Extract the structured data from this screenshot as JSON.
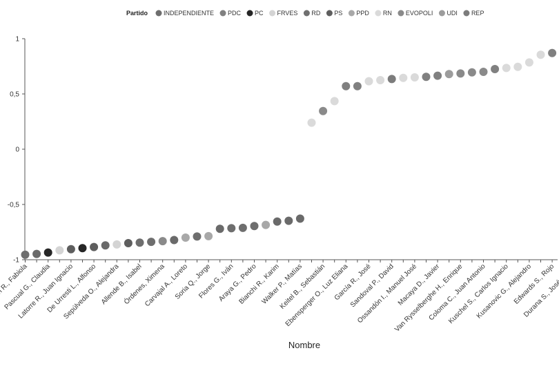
{
  "chart_data": {
    "type": "scatter",
    "title": "",
    "xlabel": "Nombre",
    "ylabel": "",
    "ylim": [
      -1,
      1
    ],
    "y_ticks": [
      {
        "value": 1,
        "label": "1"
      },
      {
        "value": 0.5,
        "label": "0,5"
      },
      {
        "value": 0,
        "label": "0"
      },
      {
        "value": -0.5,
        "label": "-0,5"
      },
      {
        "value": -1,
        "label": "-1"
      }
    ],
    "grid": false,
    "legend_position": "top-center",
    "legend": {
      "title": "Partido",
      "entries": [
        {
          "name": "INDEPENDIENTE",
          "color": "#6e6e6e"
        },
        {
          "name": "PDC",
          "color": "#808080"
        },
        {
          "name": "PC",
          "color": "#262626"
        },
        {
          "name": "FRVES",
          "color": "#d4d4d4"
        },
        {
          "name": "RD",
          "color": "#707070"
        },
        {
          "name": "PS",
          "color": "#5e5e5e"
        },
        {
          "name": "PPD",
          "color": "#a8a8a8"
        },
        {
          "name": "RN",
          "color": "#dadada"
        },
        {
          "name": "EVOPOLI",
          "color": "#8a8a8a"
        },
        {
          "name": "UDI",
          "color": "#9c9c9c"
        },
        {
          "name": "REP",
          "color": "#7c7c7c"
        }
      ]
    },
    "x_tick_labels": [
      "Rincón R., Fabiola",
      "Pascual G., Claudia",
      "Latorre R., Juan Ignacio",
      "De Urresti L., Alfonso",
      "Sepúlveda O., Alejandra",
      "Allende B., Isabel",
      "Órdenes, Ximena",
      "Carvajal A., Loreto",
      "Soria Q., Jorge",
      "Flores G., Iván",
      "Araya G., Pedro",
      "Bianchi R., Karim",
      "Walker P., Matías",
      "Keitel B., Sebastián",
      "Ebensperger O., Luz Eliana",
      "García R., José",
      "Sandoval P., David",
      "Ossandón I., Manuel José",
      "Macaya D., Javier",
      "Van Rysselberghe H., Enrique",
      "Coloma C., Juan Antonio",
      "Kuschel S., Carlos Ignacio",
      "Kusanovic G., Alejandro",
      "Edwards S., Rojo",
      "Durana S., José Miguel"
    ],
    "points": [
      {
        "y": -0.955,
        "color": "#6e6e6e"
      },
      {
        "y": -0.948,
        "color": "#6a6a6a"
      },
      {
        "y": -0.935,
        "color": "#262626"
      },
      {
        "y": -0.915,
        "color": "#d4d4d4"
      },
      {
        "y": -0.905,
        "color": "#5e5e5e"
      },
      {
        "y": -0.895,
        "color": "#262626"
      },
      {
        "y": -0.885,
        "color": "#5e5e5e"
      },
      {
        "y": -0.87,
        "color": "#6a6a6a"
      },
      {
        "y": -0.862,
        "color": "#d4d4d4"
      },
      {
        "y": -0.85,
        "color": "#5e5e5e"
      },
      {
        "y": -0.845,
        "color": "#6e6e6e"
      },
      {
        "y": -0.838,
        "color": "#6e6e6e"
      },
      {
        "y": -0.832,
        "color": "#8a8a8a"
      },
      {
        "y": -0.822,
        "color": "#6a6a6a"
      },
      {
        "y": -0.8,
        "color": "#a8a8a8"
      },
      {
        "y": -0.79,
        "color": "#6e6e6e"
      },
      {
        "y": -0.787,
        "color": "#a8a8a8"
      },
      {
        "y": -0.72,
        "color": "#6a6a6a"
      },
      {
        "y": -0.715,
        "color": "#6e6e6e"
      },
      {
        "y": -0.712,
        "color": "#6e6e6e"
      },
      {
        "y": -0.695,
        "color": "#6e6e6e"
      },
      {
        "y": -0.685,
        "color": "#a8a8a8"
      },
      {
        "y": -0.655,
        "color": "#6a6a6a"
      },
      {
        "y": -0.648,
        "color": "#6a6a6a"
      },
      {
        "y": -0.628,
        "color": "#6a6a6a"
      },
      {
        "y": 0.24,
        "color": "#dadada"
      },
      {
        "y": 0.345,
        "color": "#8a8a8a"
      },
      {
        "y": 0.435,
        "color": "#dadada"
      },
      {
        "y": 0.57,
        "color": "#808080"
      },
      {
        "y": 0.57,
        "color": "#808080"
      },
      {
        "y": 0.615,
        "color": "#dadada"
      },
      {
        "y": 0.625,
        "color": "#dadada"
      },
      {
        "y": 0.635,
        "color": "#7c7c7c"
      },
      {
        "y": 0.645,
        "color": "#dadada"
      },
      {
        "y": 0.65,
        "color": "#dadada"
      },
      {
        "y": 0.655,
        "color": "#808080"
      },
      {
        "y": 0.665,
        "color": "#808080"
      },
      {
        "y": 0.68,
        "color": "#9c9c9c"
      },
      {
        "y": 0.685,
        "color": "#8a8a8a"
      },
      {
        "y": 0.695,
        "color": "#8a8a8a"
      },
      {
        "y": 0.7,
        "color": "#8a8a8a"
      },
      {
        "y": 0.725,
        "color": "#808080"
      },
      {
        "y": 0.735,
        "color": "#dadada"
      },
      {
        "y": 0.745,
        "color": "#dadada"
      },
      {
        "y": 0.785,
        "color": "#dadada"
      },
      {
        "y": 0.855,
        "color": "#dadada"
      },
      {
        "y": 0.87,
        "color": "#808080"
      },
      {
        "y": 0.88,
        "color": "#808080"
      }
    ]
  }
}
